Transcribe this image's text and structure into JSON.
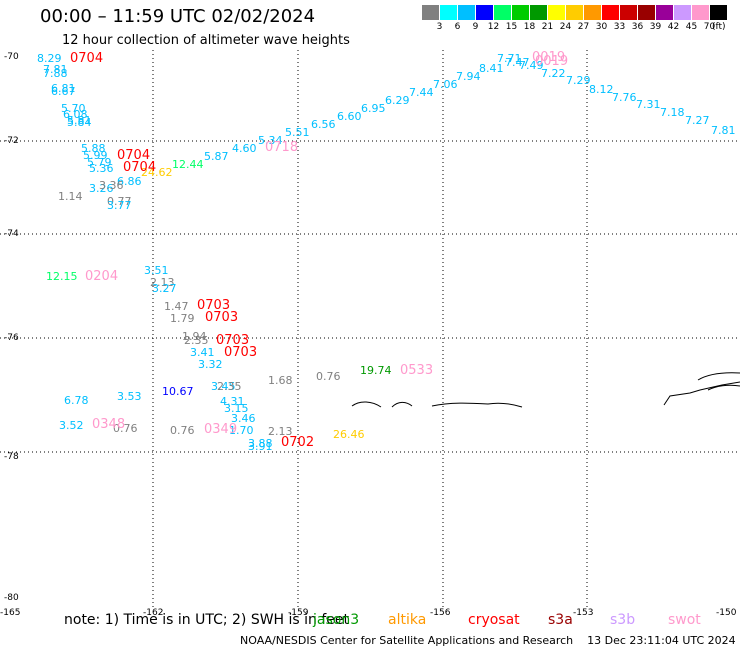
{
  "header": {
    "title": "00:00 – 11:59 UTC 02/02/2024",
    "subtitle": "12 hour collection of altimeter wave heights"
  },
  "legend": {
    "unit": "(ft)",
    "colors": [
      "#808080",
      "#00ffff",
      "#00bfff",
      "#0000ff",
      "#00ff66",
      "#00cc00",
      "#009900",
      "#ffff00",
      "#ffcc00",
      "#ff9900",
      "#ff0000",
      "#cc0000",
      "#990000",
      "#990099",
      "#cc99ff",
      "#ff99cc",
      "#000000"
    ],
    "labels": [
      "3",
      "6",
      "9",
      "12",
      "15",
      "18",
      "21",
      "24",
      "27",
      "30",
      "33",
      "36",
      "39",
      "42",
      "45",
      "70"
    ]
  },
  "axes": {
    "lat_labels": [
      "-70",
      "-72",
      "-74",
      "-76",
      "-78",
      "-80"
    ],
    "lon_labels": [
      "-165",
      "-162",
      "-159",
      "-156",
      "-153",
      "-150"
    ]
  },
  "footer": {
    "note": "note: 1) Time is in UTC; 2) SWH is in feet",
    "satellites": [
      {
        "name": "jason3",
        "color": "#009900"
      },
      {
        "name": "altika",
        "color": "#ff9900"
      },
      {
        "name": "cryosat",
        "color": "#ff0000"
      },
      {
        "name": "s3a",
        "color": "#990000"
      },
      {
        "name": "s3b",
        "color": "#cc99ff"
      },
      {
        "name": "swot",
        "color": "#ff99cc"
      }
    ],
    "credit": "NOAA/NESDIS Center for Satellite Applications and Research",
    "generated": "13 Dec 23:11:04 UTC 2024"
  },
  "observations": [
    {
      "v": "8.29",
      "c": "#00bfff"
    },
    {
      "v": "7.81",
      "c": "#00bfff"
    },
    {
      "v": "7.88",
      "c": "#00bfff"
    },
    {
      "v": "6.81",
      "c": "#00bfff"
    },
    {
      "v": "6.67",
      "c": "#00bfff"
    },
    {
      "v": "5.70",
      "c": "#00bfff"
    },
    {
      "v": "6.08",
      "c": "#00bfff"
    },
    {
      "v": "5.81",
      "c": "#00bfff"
    },
    {
      "v": "5.84",
      "c": "#00bfff"
    },
    {
      "v": "5.88",
      "c": "#00bfff"
    },
    {
      "v": "5.99",
      "c": "#00bfff"
    },
    {
      "v": "5.79",
      "c": "#00bfff"
    },
    {
      "v": "5.36",
      "c": "#00bfff"
    },
    {
      "v": "6.86",
      "c": "#00bfff"
    },
    {
      "v": "3.26",
      "c": "#00bfff"
    },
    {
      "v": "3.36",
      "c": "#808080"
    },
    {
      "v": "1.14",
      "c": "#808080"
    },
    {
      "v": "0.77",
      "c": "#808080"
    },
    {
      "v": "3.77",
      "c": "#00bfff"
    },
    {
      "v": "24.62",
      "c": "#ffcc00"
    },
    {
      "v": "12.44",
      "c": "#00ff66"
    },
    {
      "v": "5.87",
      "c": "#00bfff"
    },
    {
      "v": "4.60",
      "c": "#00bfff"
    },
    {
      "v": "5.34",
      "c": "#00bfff"
    },
    {
      "v": "5.51",
      "c": "#00bfff"
    },
    {
      "v": "6.56",
      "c": "#00bfff"
    },
    {
      "v": "6.60",
      "c": "#00bfff"
    },
    {
      "v": "6.95",
      "c": "#00bfff"
    },
    {
      "v": "6.29",
      "c": "#00bfff"
    },
    {
      "v": "7.44",
      "c": "#00bfff"
    },
    {
      "v": "7.06",
      "c": "#00bfff"
    },
    {
      "v": "7.94",
      "c": "#00bfff"
    },
    {
      "v": "8.41",
      "c": "#00bfff"
    },
    {
      "v": "7.71",
      "c": "#00bfff"
    },
    {
      "v": "7.47",
      "c": "#00bfff"
    },
    {
      "v": "7.49",
      "c": "#00bfff"
    },
    {
      "v": "7.22",
      "c": "#00bfff"
    },
    {
      "v": "7.29",
      "c": "#00bfff"
    },
    {
      "v": "8.12",
      "c": "#00bfff"
    },
    {
      "v": "7.76",
      "c": "#00bfff"
    },
    {
      "v": "7.31",
      "c": "#00bfff"
    },
    {
      "v": "7.18",
      "c": "#00bfff"
    },
    {
      "v": "7.27",
      "c": "#00bfff"
    },
    {
      "v": "7.81",
      "c": "#00bfff"
    },
    {
      "v": "12.15",
      "c": "#00ff66"
    },
    {
      "v": "3.51",
      "c": "#00bfff"
    },
    {
      "v": "2.13",
      "c": "#808080"
    },
    {
      "v": "3.27",
      "c": "#00bfff"
    },
    {
      "v": "1.47",
      "c": "#808080"
    },
    {
      "v": "1.79",
      "c": "#808080"
    },
    {
      "v": "1.94",
      "c": "#808080"
    },
    {
      "v": "2.35",
      "c": "#808080"
    },
    {
      "v": "3.41",
      "c": "#00bfff"
    },
    {
      "v": "3.32",
      "c": "#00bfff"
    },
    {
      "v": "1.68",
      "c": "#808080"
    },
    {
      "v": "0.76",
      "c": "#808080"
    },
    {
      "v": "19.74",
      "c": "#009900"
    },
    {
      "v": "6.78",
      "c": "#00bfff"
    },
    {
      "v": "3.53",
      "c": "#00bfff"
    },
    {
      "v": "10.67",
      "c": "#0000ff"
    },
    {
      "v": "3.45",
      "c": "#00bfff"
    },
    {
      "v": "2.35",
      "c": "#808080"
    },
    {
      "v": "4.31",
      "c": "#00bfff"
    },
    {
      "v": "3.15",
      "c": "#00bfff"
    },
    {
      "v": "3.46",
      "c": "#00bfff"
    },
    {
      "v": "3.52",
      "c": "#00bfff"
    },
    {
      "v": "0.76",
      "c": "#808080"
    },
    {
      "v": "0.76",
      "c": "#808080"
    },
    {
      "v": "1.70",
      "c": "#00bfff"
    },
    {
      "v": "2.13",
      "c": "#808080"
    },
    {
      "v": "3.88",
      "c": "#00bfff"
    },
    {
      "v": "3.91",
      "c": "#00bfff"
    },
    {
      "v": "26.46",
      "c": "#ffcc00"
    }
  ],
  "pass_times": [
    {
      "t": "0704",
      "c": "#ff0000"
    },
    {
      "t": "0704",
      "c": "#ff0000"
    },
    {
      "t": "0704",
      "c": "#ff0000"
    },
    {
      "t": "0718",
      "c": "#ff99cc"
    },
    {
      "t": "0019",
      "c": "#ff99cc"
    },
    {
      "t": "0019",
      "c": "#ff99cc"
    },
    {
      "t": "0204",
      "c": "#ff99cc"
    },
    {
      "t": "0703",
      "c": "#ff0000"
    },
    {
      "t": "0703",
      "c": "#ff0000"
    },
    {
      "t": "0703",
      "c": "#ff0000"
    },
    {
      "t": "0703",
      "c": "#ff0000"
    },
    {
      "t": "0533",
      "c": "#ff99cc"
    },
    {
      "t": "0348",
      "c": "#ff99cc"
    },
    {
      "t": "0349",
      "c": "#ff99cc"
    },
    {
      "t": "0702",
      "c": "#ff0000"
    }
  ]
}
